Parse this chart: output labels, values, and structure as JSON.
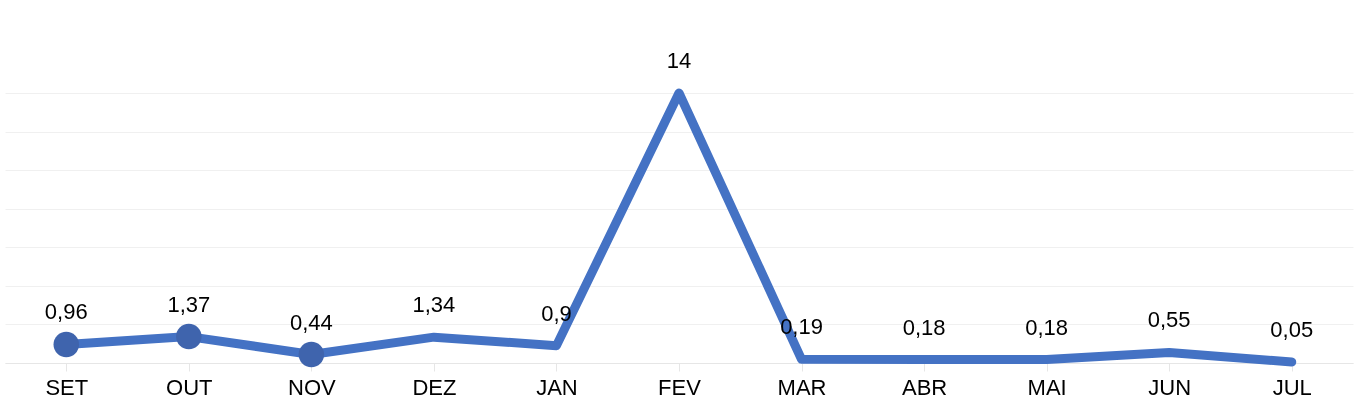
{
  "chart_data": {
    "type": "line",
    "categories": [
      "SET",
      "OUT",
      "NOV",
      "DEZ",
      "JAN",
      "FEV",
      "MAR",
      "ABR",
      "MAI",
      "JUN",
      "JUL"
    ],
    "series": [
      {
        "color": "#4472c4",
        "values": [
          0.96,
          1.37,
          0.44,
          1.34,
          0.9,
          14,
          0.19,
          0.18,
          0.18,
          0.55,
          0.05
        ],
        "value_labels": [
          "0,96",
          "1,37",
          "0,44",
          "1,34",
          "0,9",
          "14",
          "0,19",
          "0,18",
          "0,18",
          "0,55",
          "0,05"
        ]
      },
      {
        "type": "scatter",
        "color": "#3f64ad",
        "marker": "circle",
        "values": [
          0.96,
          1.37,
          0.44,
          null,
          null,
          null,
          null,
          null,
          null,
          null,
          null
        ]
      }
    ],
    "ylim": [
      0,
      14
    ],
    "grid": "y",
    "line_style": "solid"
  }
}
